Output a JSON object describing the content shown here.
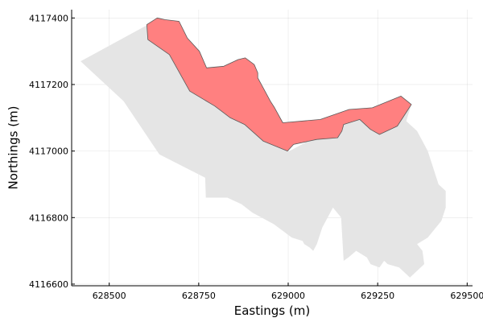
{
  "chart_data": {
    "type": "area",
    "xlabel": "Eastings (m)",
    "ylabel": "Northings (m)",
    "xlim": [
      628395,
      629515
    ],
    "ylim": [
      4116595,
      4117425
    ],
    "xticks": [
      628500,
      628750,
      629000,
      629250,
      629500
    ],
    "xtick_labels": [
      "628500",
      "628750",
      "629000",
      "629250",
      "629500"
    ],
    "yticks": [
      4116600,
      4116800,
      4117000,
      4117200,
      4117400
    ],
    "ytick_labels": [
      "4116600",
      "4116800",
      "4117000",
      "4117200",
      "4117400"
    ],
    "grid": true,
    "legend": "none",
    "colors": {
      "background_region": "#e5e5e5",
      "highlight_region": "#ff8080",
      "highlight_outline": "#5a5a5a"
    },
    "series": [
      {
        "color": "#e5e5e5",
        "x": [
          628420,
          628634,
          628605,
          628608,
          628668,
          628725,
          628905,
          629000,
          629160,
          629344,
          629330,
          629360,
          629390,
          629420,
          629440,
          629440,
          629428,
          629390,
          629360,
          629375,
          629380,
          629340,
          629310,
          629278,
          629268,
          629255,
          629230,
          629220,
          629190,
          629168,
          629155,
          629150,
          629148,
          629125,
          629095,
          629080,
          629070,
          629060,
          629045,
          629040,
          629010,
          628960,
          628900,
          628870,
          628830,
          628770,
          628768,
          628640,
          628540,
          628420
        ],
        "y": [
          4117270,
          4117395,
          4117380,
          4117335,
          4117290,
          4117180,
          4117085,
          4116998,
          4117090,
          4117140,
          4117090,
          4117060,
          4117000,
          4116900,
          4116880,
          4116830,
          4116790,
          4116740,
          4116720,
          4116700,
          4116660,
          4116620,
          4116650,
          4116660,
          4116670,
          4116650,
          4116660,
          4116680,
          4116700,
          4116680,
          4116670,
          4116760,
          4116800,
          4116830,
          4116770,
          4116720,
          4116700,
          4116710,
          4116720,
          4116730,
          4116740,
          4116780,
          4116815,
          4116840,
          4116860,
          4116860,
          4116920,
          4116990,
          4117150,
          4117270
        ]
      },
      {
        "color": "#ff8080",
        "x": [
          628634,
          628655,
          628695,
          628718,
          628752,
          628772,
          628820,
          628860,
          628880,
          628905,
          628915,
          628915,
          628930,
          628950,
          628962,
          628985,
          629090,
          629170,
          629235,
          629315,
          629344,
          629305,
          629255,
          629230,
          629200,
          629155,
          629150,
          629138,
          629080,
          629015,
          628998,
          628930,
          628878,
          628838,
          628795,
          628725,
          628668,
          628608,
          628605
        ],
        "y": [
          4117400,
          4117395,
          4117390,
          4117340,
          4117300,
          4117250,
          4117255,
          4117275,
          4117280,
          4117260,
          4117235,
          4117220,
          4117190,
          4117150,
          4117130,
          4117085,
          4117095,
          4117125,
          4117130,
          4117165,
          4117140,
          4117075,
          4117050,
          4117065,
          4117095,
          4117080,
          4117060,
          4117040,
          4117035,
          4117020,
          4117000,
          4117030,
          4117080,
          4117100,
          4117135,
          4117180,
          4117290,
          4117335,
          4117380
        ]
      }
    ]
  }
}
